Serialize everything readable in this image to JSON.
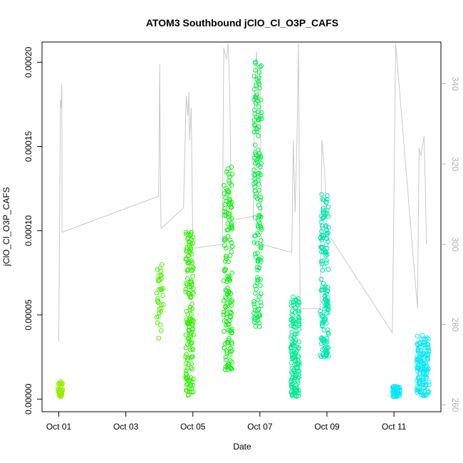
{
  "chart_data": {
    "type": "scatter",
    "title": "ATOM3 Southbound jClO_Cl_O3P_CAFS",
    "xlabel": "Date",
    "ylabel": "jClO_Cl_O3P_CAFS",
    "x_ticks": [
      "Oct 01",
      "Oct 03",
      "Oct 05",
      "Oct 07",
      "Oct 09",
      "Oct 11"
    ],
    "x_tick_positions_days": [
      1,
      3,
      5,
      7,
      9,
      11
    ],
    "xlim_days": [
      0.5,
      12.4
    ],
    "y_ticks": [
      "0.00000",
      "0.00005",
      "0.00010",
      "0.00015",
      "0.00020"
    ],
    "y_tick_values": [
      0,
      5e-05,
      0.0001,
      0.00015,
      0.0002
    ],
    "ylim": [
      -7.5e-06,
      0.000212
    ],
    "y2_ticks": [
      "260",
      "280",
      "300",
      "320",
      "340"
    ],
    "y2_tick_values": [
      260,
      280,
      300,
      320,
      340
    ],
    "y2lim": [
      258.3,
      350.4
    ],
    "grid": false,
    "scatter_series": [
      {
        "color": "#96ee00",
        "x_range": [
          0.97,
          1.12
        ],
        "y_range": [
          1.5e-06,
          1.05e-05
        ],
        "n": 40
      },
      {
        "color": "#4cf200",
        "x_range": [
          3.92,
          4.12
        ],
        "y_range": [
          3.6e-05,
          8e-05
        ],
        "n": 34
      },
      {
        "color": "#30f000",
        "x_range": [
          4.78,
          5.02
        ],
        "y_range": [
          2e-06,
          0.0001
        ],
        "n": 150
      },
      {
        "color": "#10ef10",
        "x_range": [
          5.92,
          6.18
        ],
        "y_range": [
          1.7e-05,
          0.000138
        ],
        "n": 150
      },
      {
        "color": "#00ee40",
        "x_range": [
          6.82,
          7.05
        ],
        "y_range": [
          4.3e-05,
          0.000205
        ],
        "n": 150
      },
      {
        "color": "#00eb90",
        "x_range": [
          7.92,
          8.18
        ],
        "y_range": [
          1.5e-06,
          6.1e-05
        ],
        "n": 150
      },
      {
        "color": "#00e6b0",
        "x_range": [
          8.8,
          9.05
        ],
        "y_range": [
          2.5e-05,
          0.000122
        ],
        "n": 150
      },
      {
        "color": "#00e6f4",
        "x_range": [
          10.95,
          11.18
        ],
        "y_range": [
          1.5e-06,
          8e-06
        ],
        "n": 40
      },
      {
        "color": "#10e8f4",
        "x_range": [
          11.68,
          12.05
        ],
        "y_range": [
          1.5e-06,
          3.8e-05
        ],
        "n": 150
      }
    ],
    "line_series": {
      "color": "#c8c8c8",
      "axis": "right",
      "points": [
        [
          1.0,
          276
        ],
        [
          1.02,
          303
        ],
        [
          1.05,
          336
        ],
        [
          1.07,
          334
        ],
        [
          1.09,
          340
        ],
        [
          1.1,
          303
        ],
        [
          3.98,
          312
        ],
        [
          4.01,
          345
        ],
        [
          4.03,
          320
        ],
        [
          4.05,
          304
        ],
        [
          4.72,
          309
        ],
        [
          4.8,
          337
        ],
        [
          4.85,
          332
        ],
        [
          4.88,
          338
        ],
        [
          4.9,
          326
        ],
        [
          4.95,
          334
        ],
        [
          5.0,
          299
        ],
        [
          5.88,
          300
        ],
        [
          5.92,
          349
        ],
        [
          6.0,
          346
        ],
        [
          6.05,
          350
        ],
        [
          6.1,
          338
        ],
        [
          6.15,
          306
        ],
        [
          6.8,
          307
        ],
        [
          6.85,
          340
        ],
        [
          6.9,
          348
        ],
        [
          6.95,
          335
        ],
        [
          7.0,
          345
        ],
        [
          7.05,
          300
        ],
        [
          7.95,
          298
        ],
        [
          8.0,
          326
        ],
        [
          8.05,
          308
        ],
        [
          8.1,
          323
        ],
        [
          8.15,
          350
        ],
        [
          8.2,
          284
        ],
        [
          8.8,
          284
        ],
        [
          8.85,
          326
        ],
        [
          8.95,
          316
        ],
        [
          9.0,
          303
        ],
        [
          10.95,
          278
        ],
        [
          11.0,
          312
        ],
        [
          11.05,
          350
        ],
        [
          11.1,
          345
        ],
        [
          11.7,
          284
        ],
        [
          11.75,
          324
        ],
        [
          11.8,
          322
        ],
        [
          11.9,
          327
        ],
        [
          11.97,
          300
        ]
      ]
    }
  }
}
